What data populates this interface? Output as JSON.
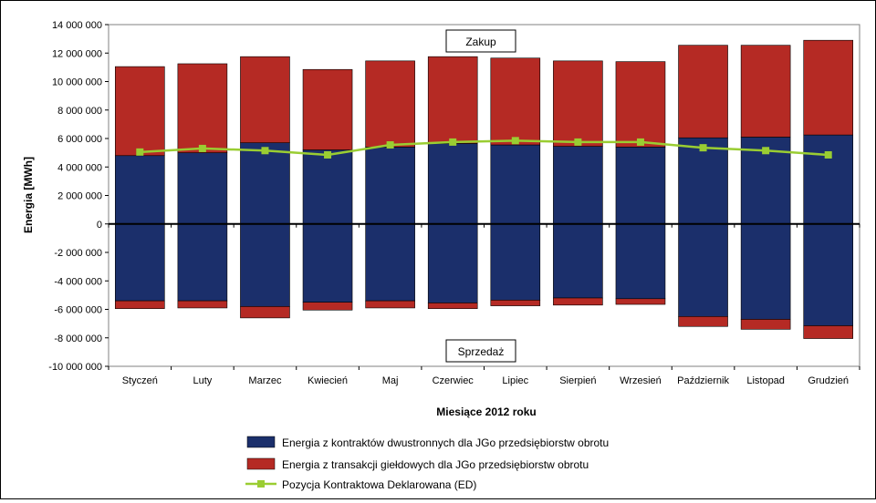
{
  "chart_data": {
    "type": "bar",
    "stacked": true,
    "xlabel": "Miesiące 2012 roku",
    "ylabel": "Energia [MWh]",
    "ylim": [
      -10000000,
      14000000
    ],
    "ytick_step": 2000000,
    "ytick_labels": [
      "-10 000 000",
      "-8 000 000",
      "-6 000 000",
      "-4 000 000",
      "-2 000 000",
      "0",
      "2 000 000",
      "4 000 000",
      "6 000 000",
      "8 000 000",
      "10 000 000",
      "12 000 000",
      "14 000 000"
    ],
    "grid": false,
    "categories": [
      "Styczeń",
      "Luty",
      "Marzec",
      "Kwiecień",
      "Maj",
      "Czerwiec",
      "Lipiec",
      "Sierpień",
      "Wrzesień",
      "Październik",
      "Listopad",
      "Grudzień"
    ],
    "series": [
      {
        "name": "Energia z kontraktów dwustronnych dla JGo przedsiębiorstw obrotu",
        "color": "#1b2f6b",
        "purchase": [
          4800000,
          5000000,
          5700000,
          5200000,
          5400000,
          5650000,
          5550000,
          5450000,
          5400000,
          6050000,
          6100000,
          6250000
        ],
        "sale": [
          -5400000,
          -5400000,
          -5800000,
          -5500000,
          -5400000,
          -5550000,
          -5350000,
          -5200000,
          -5250000,
          -6500000,
          -6700000,
          -7150000
        ]
      },
      {
        "name": "Energia z transakcji giełdowych dla JGo przedsiębiorstw obrotu",
        "color": "#b52a24",
        "purchase": [
          6250000,
          6250000,
          6050000,
          5650000,
          6050000,
          6100000,
          6100000,
          6000000,
          6000000,
          6500000,
          6450000,
          6650000
        ],
        "sale": [
          -550000,
          -500000,
          -800000,
          -550000,
          -500000,
          -400000,
          -400000,
          -500000,
          -400000,
          -700000,
          -700000,
          -900000
        ]
      },
      {
        "name": "Pozycja Kontraktowa Deklarowana (ED)",
        "color": "#9acd32",
        "type": "line",
        "values": [
          5050000,
          5300000,
          5150000,
          4850000,
          5550000,
          5750000,
          5850000,
          5750000,
          5750000,
          5350000,
          5150000,
          4850000
        ]
      }
    ],
    "annotations": {
      "top": "Zakup",
      "bottom": "Sprzedaż"
    },
    "legend_position": "bottom"
  }
}
